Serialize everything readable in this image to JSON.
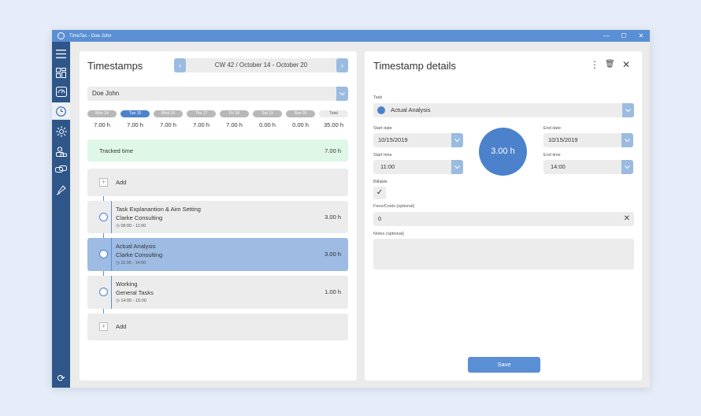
{
  "window": {
    "title": "TimeTac - Doe John"
  },
  "titlebar_controls": {
    "minimize": "—",
    "maximize": "☐",
    "close": "✕"
  },
  "sidebar": {
    "items": [
      {
        "name": "menu-icon",
        "glyph": "☰"
      },
      {
        "name": "dashboard-icon",
        "glyph": "▦"
      },
      {
        "name": "gauge-icon",
        "glyph": "◔"
      },
      {
        "name": "clock-icon",
        "glyph": "◷"
      },
      {
        "name": "sun-icon",
        "glyph": "☼"
      },
      {
        "name": "users-icon",
        "glyph": "⚇"
      },
      {
        "name": "chat-icon",
        "glyph": "✉"
      },
      {
        "name": "bell-icon",
        "glyph": "⚲"
      }
    ],
    "sync_glyph": "⟳"
  },
  "timestamps": {
    "title": "Timestamps",
    "week_label": "CW 42 / October 14 - October 20",
    "prev": "‹",
    "next": "›",
    "user": "Doe John",
    "dropdown_glyph": "⌄",
    "days": [
      {
        "label": "Mon 14",
        "hours": "7.00 h"
      },
      {
        "label": "Tue 15",
        "hours": "7.00 h"
      },
      {
        "label": "Wed 16",
        "hours": "7.00 h"
      },
      {
        "label": "Thu 17",
        "hours": "7.00 h"
      },
      {
        "label": "Fri 18",
        "hours": "7.00 h"
      },
      {
        "label": "Sat 19",
        "hours": "0.00 h"
      },
      {
        "label": "Sun 20",
        "hours": "0.00 h"
      }
    ],
    "total": {
      "label": "Total",
      "hours": "35.00 h"
    },
    "tracked": {
      "label": "Tracked time",
      "hours": "7.00 h"
    },
    "add_label": "Add",
    "add_glyph": "+",
    "entries": [
      {
        "task": "Task Explanantion & Aim Setting",
        "client": "Clarke Consulting",
        "time": "08:00 - 11:00",
        "hours": "3.00 h"
      },
      {
        "task": "Actual Analysis",
        "client": "Clarke Consulting",
        "time": "11:00 - 14:00",
        "hours": "3.00 h"
      },
      {
        "task": "Working",
        "client": "General Tasks",
        "time": "14:00 - 15:00",
        "hours": "1.00 h"
      }
    ],
    "clock_glyph": "◷"
  },
  "details": {
    "title": "Timestamp details",
    "more_glyph": "⋮",
    "delete_glyph": "🗑",
    "close_glyph": "✕",
    "task_label": "Task",
    "task_value": "Actual Analysis",
    "start_date_label": "Start date",
    "start_date": "10/15/2019",
    "end_date_label": "End date",
    "end_date": "10/15/2019",
    "start_time_label": "Start time",
    "start_time": "11:00",
    "end_time_label": "End time",
    "end_time": "14:00",
    "duration": "3.00 h",
    "billable_label": "Billable",
    "check_glyph": "✓",
    "fees_label": "Fees/Costs (optional)",
    "fees_value": "0",
    "clear_glyph": "✕",
    "notes_label": "Notes (optional)",
    "notes_value": "",
    "save_label": "Save"
  }
}
